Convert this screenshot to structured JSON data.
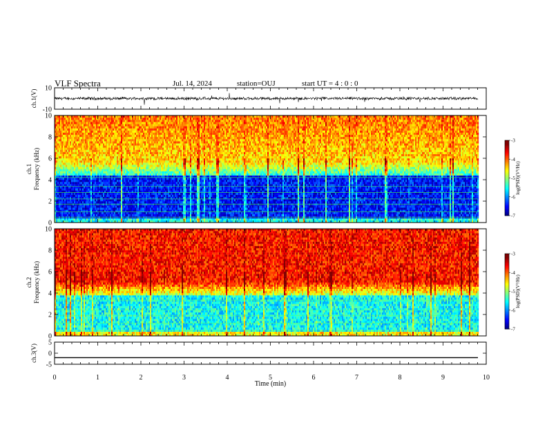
{
  "header": {
    "title": "VLF Spectra",
    "date": "Jul. 14, 2024",
    "station": "station=OUJ",
    "start_ut": "start UT =  4 : 0  : 0"
  },
  "chart_data": [
    {
      "type": "line",
      "ylabel": "ch.1(V)",
      "ylim": [
        -10,
        10
      ],
      "yticks": [
        10,
        -10
      ],
      "xlim": [
        0,
        10
      ],
      "description_values": {
        "baseline": 0,
        "noise_range": [
          -2,
          2
        ],
        "spike_max_abs": 6
      }
    },
    {
      "type": "heatmap",
      "ylabel": "Frequency (kHz)",
      "channel_label": "ch.1",
      "ylim": [
        0,
        10
      ],
      "yticks": [
        0,
        2,
        4,
        6,
        8,
        10
      ],
      "xlim": [
        0,
        9.8
      ],
      "colorbar": {
        "label": "log(PSD)(V²/Hz)",
        "ticks": [
          "-3",
          "-4",
          "-5",
          "-6",
          "-7"
        ],
        "range": [
          -7,
          -3
        ]
      }
    },
    {
      "type": "heatmap",
      "ylabel": "Frequency (kHz)",
      "channel_label": "ch.2",
      "ylim": [
        0,
        10
      ],
      "yticks": [
        0,
        2,
        4,
        6,
        8,
        10
      ],
      "xlim": [
        0,
        9.8
      ],
      "colorbar": {
        "label": "log(PSD)(V²/Hz)",
        "ticks": [
          "-3",
          "-4",
          "-5",
          "-6",
          "-7"
        ],
        "range": [
          -7,
          -3
        ]
      }
    },
    {
      "type": "line",
      "ylabel": "ch.3(V)",
      "ylim": [
        -5,
        5
      ],
      "yticks": [
        5,
        0,
        -5
      ],
      "xlim": [
        0,
        10
      ],
      "values": [
        -2,
        -2
      ]
    }
  ],
  "xaxis": {
    "label": "Time (min)",
    "ticks": [
      "0",
      "1",
      "2",
      "3",
      "4",
      "5",
      "6",
      "7",
      "8",
      "9",
      "10"
    ]
  },
  "colors": {
    "spectrogram_scale": [
      "#00007f",
      "#0000ff",
      "#00ffff",
      "#00ff00",
      "#ffff00",
      "#ff0000",
      "#ffffff"
    ]
  }
}
